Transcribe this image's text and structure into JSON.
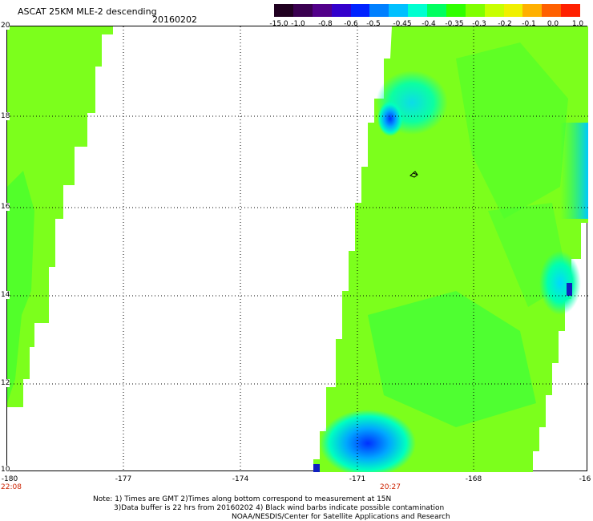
{
  "header": {
    "title": "ASCAT 25KM MLE-2 descending",
    "date": "20160202"
  },
  "colorbar": {
    "labels": [
      "-15.0",
      "-1.0",
      "-0.8",
      "-0.6",
      "-0.5",
      "-0.45",
      "-0.4",
      "-0.35",
      "-0.3",
      "-0.2",
      "-0.1",
      "0.0",
      "1.0"
    ],
    "colors": [
      "#200020",
      "#3a0050",
      "#52008a",
      "#3300cc",
      "#0022ff",
      "#0080ff",
      "#00c0ff",
      "#00ffd0",
      "#00ff60",
      "#30ff00",
      "#80ff00",
      "#c8ff00",
      "#f0f000",
      "#ffb000",
      "#ff6000",
      "#ff2000"
    ]
  },
  "map": {
    "lat_labels": [
      "20",
      "18",
      "16",
      "14",
      "12",
      "10"
    ],
    "lon_labels": [
      "-180",
      "-177",
      "-174",
      "-171",
      "-168",
      "-16"
    ],
    "time_labels": [
      "22:08",
      "20:27"
    ],
    "region": "central Pacific",
    "dominant_color": "#7cff1c",
    "gridlines": "dotted"
  },
  "notes": {
    "line1": "Note: 1) Times are GMT 2)Times along bottom correspond to measurement at 15N",
    "line2": "3)Data buffer is 22 hrs from 20160202 4) Black wind barbs indicate possible contamination",
    "line3": "NOAA/NESDIS/Center for Satellite Applications and Research"
  }
}
